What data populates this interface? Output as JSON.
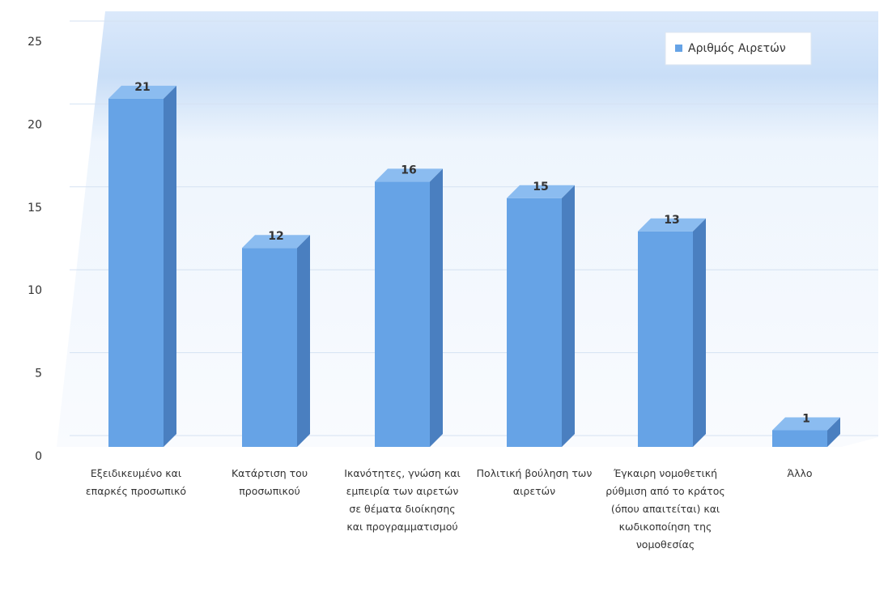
{
  "chart_data": {
    "type": "bar",
    "categories": [
      "Εξειδικευμένο και επαρκές προσωπικό",
      "Κατάρτιση του προσωπικού",
      "Ικανότητες, γνώση και εμπειρία των αιρετών σε θέματα διοίκησης και προγραμματισμού",
      "Πολιτική βούληση των αιρετών",
      "Έγκαιρη νομοθετική ρύθμιση από το κράτος (όπου απαιτείται) και κωδικοποίηση της νομοθεσίας",
      "Άλλο"
    ],
    "series": [
      {
        "name": "Αριθμός Αιρετών",
        "color": "#66a3e6",
        "values": [
          21,
          12,
          16,
          15,
          13,
          1
        ]
      }
    ],
    "ylim": [
      0,
      25
    ],
    "yticks": [
      0,
      5,
      10,
      15,
      20,
      25
    ],
    "grid": true,
    "legend": "top-right"
  }
}
